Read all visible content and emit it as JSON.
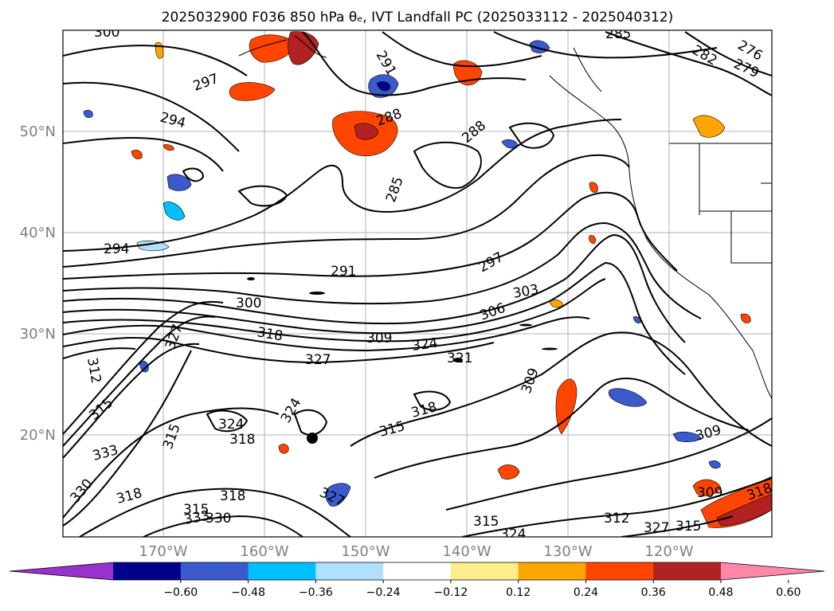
{
  "title": "2025032900 F036 850 hPa θₑ, IVT Landfall PC (2025033112 - 2025040312)",
  "lon_ticks": [
    "170°W",
    "160°W",
    "150°W",
    "140°W",
    "130°W",
    "120°W"
  ],
  "lat_ticks": [
    "50°N",
    "40°N",
    "30°N",
    "20°N"
  ],
  "colorbar": {
    "colors": [
      "#9932cc",
      "#00008b",
      "#3a5acd",
      "#00bfff",
      "#b0e0ff",
      "#ffffff",
      "#ffec8b",
      "#ffa500",
      "#ff4500",
      "#b22222",
      "#ff88aa"
    ],
    "tick_labels": [
      "−0.60",
      "−0.48",
      "−0.36",
      "−0.24",
      "−0.12",
      "0.12",
      "0.24",
      "0.36",
      "0.48",
      "0.60"
    ]
  },
  "contour_labels": [
    "300",
    "285",
    "276",
    "282",
    "279",
    "297",
    "291",
    "294",
    "288",
    "285",
    "288",
    "294",
    "291",
    "297",
    "300",
    "303",
    "306",
    "318",
    "309",
    "324",
    "327",
    "321",
    "327",
    "312",
    "315",
    "309",
    "324",
    "318",
    "315",
    "318",
    "315",
    "333",
    "318",
    "330",
    "327",
    "324",
    "333",
    "330",
    "315",
    "324",
    "312",
    "327",
    "309",
    "309",
    "318",
    "315",
    "318",
    "315"
  ]
}
